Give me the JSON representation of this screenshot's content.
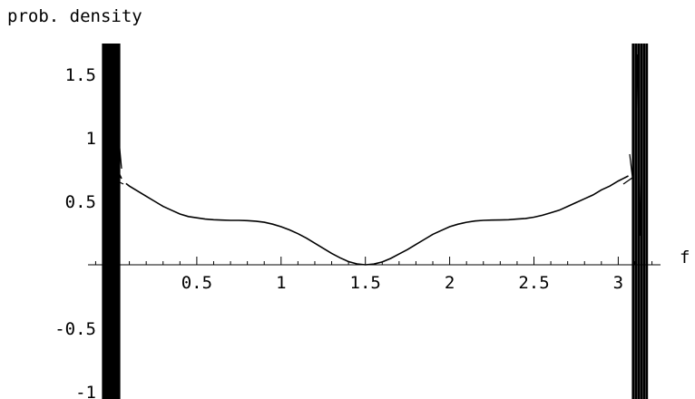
{
  "chart_data": {
    "type": "line",
    "xlabel": "f",
    "ylabel": "prob. density",
    "xlim": [
      -0.35,
      3.4
    ],
    "ylim": [
      -1.1,
      1.75
    ],
    "x_ticks": [
      {
        "value": 0.5,
        "label": "0.5"
      },
      {
        "value": 1,
        "label": "1"
      },
      {
        "value": 1.5,
        "label": "1.5"
      },
      {
        "value": 2,
        "label": "2"
      },
      {
        "value": 2.5,
        "label": "2.5"
      },
      {
        "value": 3,
        "label": "3"
      }
    ],
    "y_ticks": [
      {
        "value": -1,
        "label": "-1"
      },
      {
        "value": -0.5,
        "label": "-0.5"
      },
      {
        "value": 0.5,
        "label": "0.5"
      },
      {
        "value": 1,
        "label": "1"
      },
      {
        "value": 1.5,
        "label": "1.5"
      }
    ],
    "colors": {
      "line": "#000000",
      "axis": "#000000",
      "background": "#ffffff"
    },
    "series": [
      {
        "x": [
          0.08,
          0.1,
          0.15,
          0.2,
          0.25,
          0.3,
          0.35,
          0.4,
          0.45,
          0.5,
          0.55,
          0.6,
          0.65,
          0.7,
          0.75,
          0.8,
          0.85,
          0.9,
          0.95,
          1.0,
          1.05,
          1.1,
          1.15,
          1.2,
          1.25,
          1.3,
          1.35,
          1.4,
          1.45,
          1.5,
          1.55,
          1.6,
          1.65,
          1.7,
          1.75,
          1.8,
          1.85,
          1.9,
          1.95,
          2.0,
          2.05,
          2.1,
          2.15,
          2.2,
          2.25,
          2.3,
          2.35,
          2.4,
          2.45,
          2.5,
          2.55,
          2.6,
          2.65,
          2.7,
          2.75,
          2.8,
          2.85,
          2.9,
          2.95,
          3.0,
          3.03,
          3.06
        ],
        "y": [
          0.64,
          0.62,
          0.58,
          0.54,
          0.5,
          0.46,
          0.43,
          0.4,
          0.38,
          0.37,
          0.36,
          0.355,
          0.352,
          0.35,
          0.35,
          0.348,
          0.343,
          0.335,
          0.32,
          0.3,
          0.275,
          0.245,
          0.21,
          0.17,
          0.13,
          0.09,
          0.055,
          0.025,
          0.007,
          0.0,
          0.006,
          0.022,
          0.05,
          0.085,
          0.12,
          0.16,
          0.2,
          0.24,
          0.27,
          0.3,
          0.32,
          0.335,
          0.345,
          0.35,
          0.352,
          0.353,
          0.355,
          0.36,
          0.365,
          0.375,
          0.39,
          0.41,
          0.43,
          0.46,
          0.49,
          0.52,
          0.55,
          0.59,
          0.62,
          0.66,
          0.68,
          0.7
        ]
      }
    ]
  }
}
